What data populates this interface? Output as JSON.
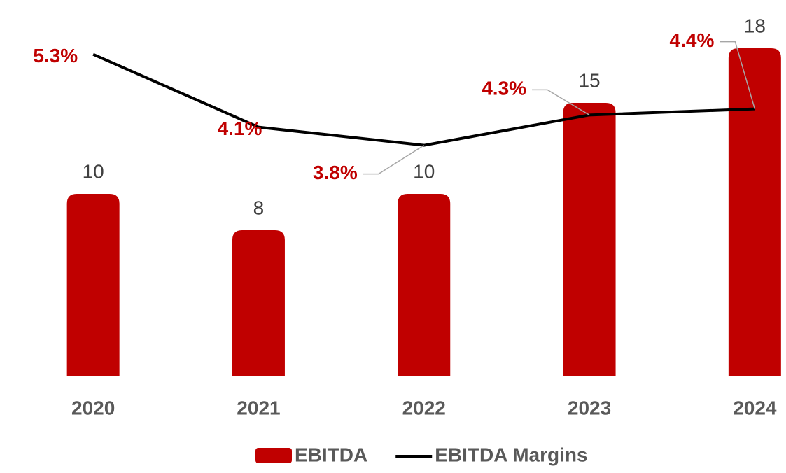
{
  "chart_data": {
    "type": "bar",
    "categories": [
      "2020",
      "2021",
      "2022",
      "2023",
      "2024"
    ],
    "ylim": [
      0,
      20
    ],
    "y2lim": [
      0,
      6
    ],
    "legend": "bottom",
    "series": [
      {
        "name": "EBITDA",
        "type": "bar",
        "color": "#c00000",
        "values": [
          10,
          8,
          10,
          15,
          18
        ]
      },
      {
        "name": "EBITDA Margins",
        "type": "line",
        "axis": "y2",
        "color": "#000000",
        "values": [
          5.3,
          4.1,
          3.8,
          4.3,
          4.4
        ],
        "value_labels": [
          "5.3%",
          "4.1%",
          "3.8%",
          "4.3%",
          "4.4%"
        ]
      }
    ]
  }
}
